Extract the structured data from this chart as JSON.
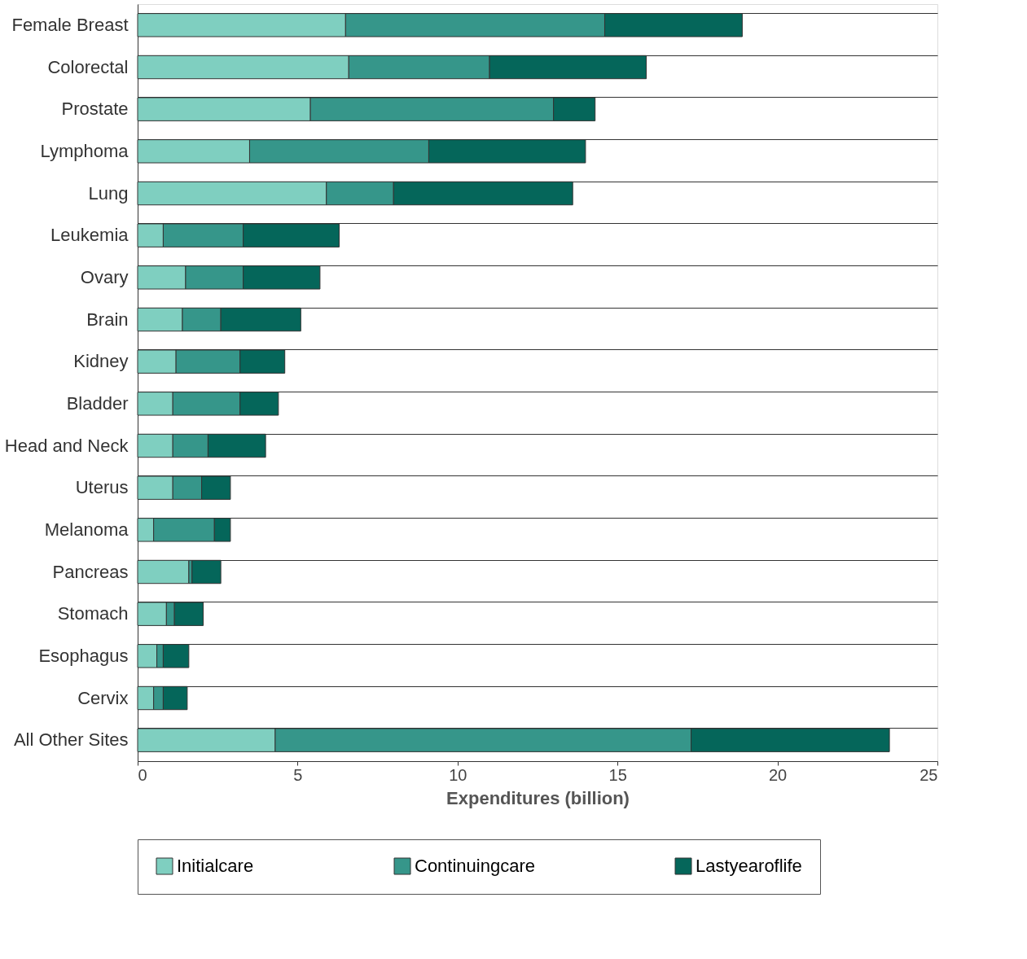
{
  "chart_data": {
    "type": "bar",
    "orientation": "horizontal",
    "stacked": true,
    "xlabel": "Expenditures (billion)",
    "categories": [
      "Female Breast",
      "Colorectal",
      "Prostate",
      "Lymphoma",
      "Lung",
      "Leukemia",
      "Ovary",
      "Brain",
      "Kidney",
      "Bladder",
      "Head and Neck",
      "Uterus",
      "Melanoma",
      "Pancreas",
      "Stomach",
      "Esophagus",
      "Cervix",
      "All Other Sites"
    ],
    "series": [
      {
        "name": "Initialcare",
        "color": "#7fcfc0",
        "values": [
          6.5,
          6.6,
          5.4,
          3.5,
          5.9,
          0.8,
          1.5,
          1.4,
          1.2,
          1.1,
          1.1,
          1.1,
          0.5,
          1.6,
          0.9,
          0.6,
          0.5,
          4.3
        ]
      },
      {
        "name": "Continuingcare",
        "color": "#36968a",
        "values": [
          8.1,
          4.4,
          7.6,
          5.6,
          2.1,
          2.5,
          1.8,
          1.2,
          2.0,
          2.1,
          1.1,
          0.9,
          1.9,
          0.1,
          0.25,
          0.2,
          0.3,
          13.0
        ]
      },
      {
        "name": "Lastyearoflife",
        "color": "#05665a",
        "values": [
          4.3,
          4.9,
          1.3,
          4.9,
          5.6,
          3.0,
          2.4,
          2.5,
          1.4,
          1.2,
          1.8,
          0.9,
          0.5,
          0.9,
          0.9,
          0.8,
          0.75,
          6.2
        ]
      }
    ],
    "xlim": [
      0,
      25
    ],
    "xticks": [
      0,
      5,
      10,
      15,
      20,
      25
    ],
    "grid": "y",
    "legend": "bottom"
  }
}
